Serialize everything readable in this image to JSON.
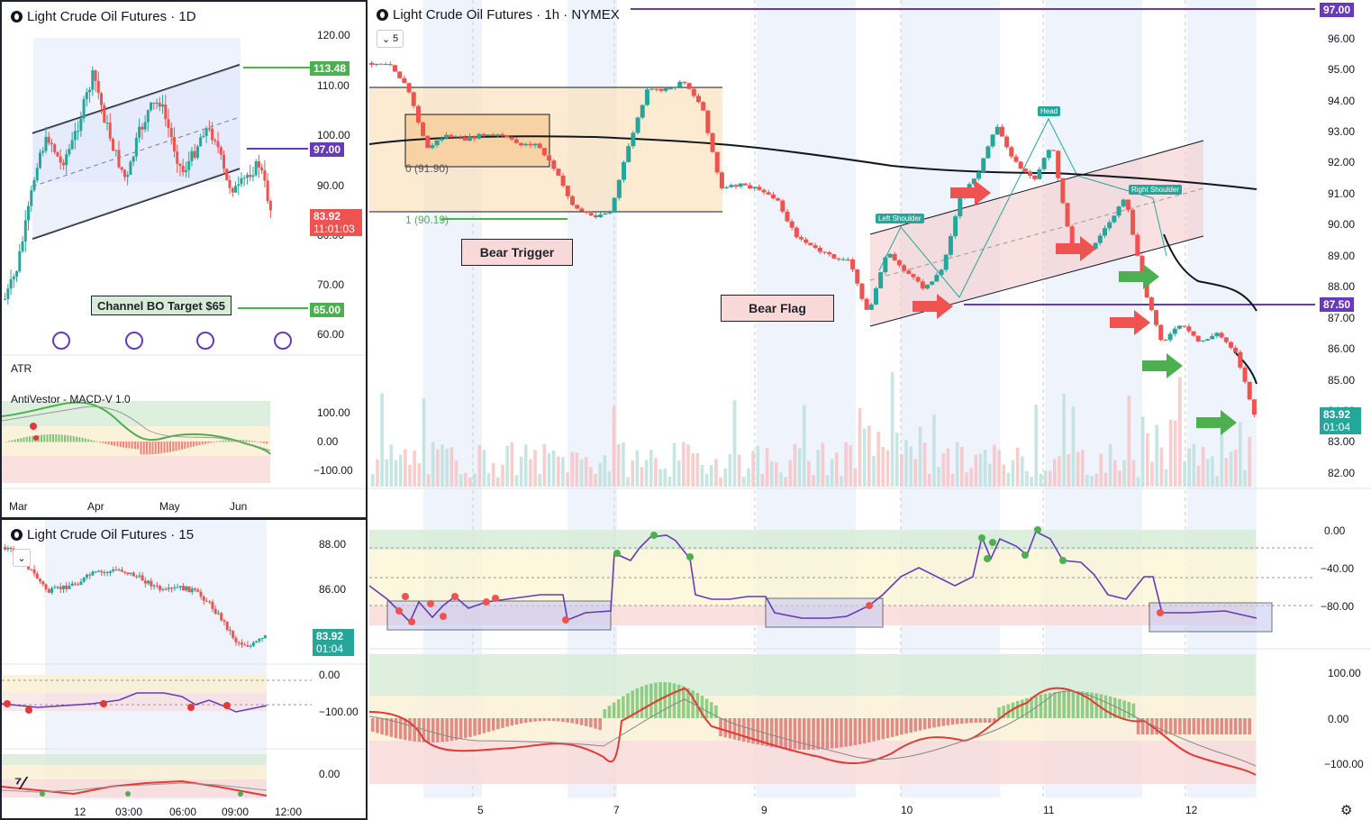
{
  "panels": {
    "daily": {
      "title": "Light Crude Oil Futures · 1D",
      "price_axis": [
        "120.00",
        "110.00",
        "100.00",
        "90.00",
        "80.00",
        "70.00",
        "60.00"
      ],
      "tags": {
        "t1": "113.48",
        "t2": "97.00",
        "t3_price": "83.92",
        "t3_time": "11:01:03",
        "t4": "65.00"
      },
      "note": "Channel BO Target $65",
      "atr_label": "ATR",
      "macd_label": "AntiVestor - MACD-V 1.0",
      "macd_axis": [
        "100.00",
        "0.00",
        "−100.00"
      ],
      "months": [
        "Mar",
        "Apr",
        "May",
        "Jun"
      ]
    },
    "m15": {
      "title": "Light Crude Oil Futures · 15",
      "price_axis": [
        "88.00",
        "86.00"
      ],
      "tag_price": "83.92",
      "tag_time": "01:04",
      "rsi_axis": [
        "0.00",
        "−100.00"
      ],
      "macd_axis": [
        "0.00"
      ],
      "times": [
        "12",
        "03:00",
        "06:00",
        "09:00",
        "12:00"
      ]
    },
    "hourly": {
      "title": "Light Crude Oil Futures · 1h · NYMEX",
      "count_btn": "5",
      "price_axis": [
        "96.00",
        "95.00",
        "94.00",
        "93.00",
        "92.00",
        "91.00",
        "90.00",
        "89.00",
        "88.00",
        "87.00",
        "86.00",
        "85.00",
        "84.00",
        "83.00",
        "82.00"
      ],
      "tags": {
        "top": "97.00",
        "mid": "87.50",
        "last_price": "83.92",
        "last_time": "01:04"
      },
      "fib0": "0 (91.90)",
      "fib1": "1 (90.19)",
      "bear_trigger": "Bear Trigger",
      "bear_flag": "Bear Flag",
      "left_shoulder": "Left Shoulder",
      "head": "Head",
      "right_shoulder": "Right Shoulder",
      "rsi_axis": [
        "0.00",
        "−40.00",
        "−80.00"
      ],
      "macd_axis": [
        "100.00",
        "0.00",
        "−100.00"
      ],
      "days": [
        "5",
        "7",
        "9",
        "10",
        "11",
        "12"
      ]
    }
  },
  "colors": {
    "up": "#26a69a",
    "down": "#ef5350",
    "purple": "#673ab7",
    "green_line": "#4caf50",
    "accent": "#2962ff"
  }
}
